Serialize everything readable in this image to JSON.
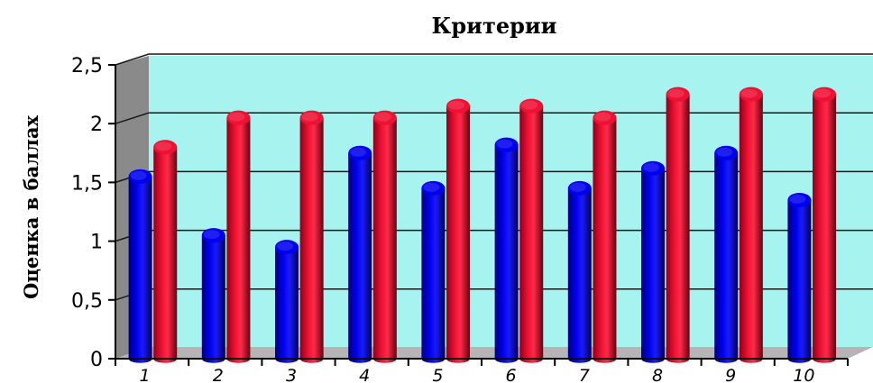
{
  "chart_data": {
    "type": "bar",
    "title": "Критерии",
    "ylabel": "Оценка в баллах",
    "xlabel": "",
    "ylim": [
      0,
      2.5
    ],
    "yticks": [
      "0",
      "0,5",
      "1",
      "1,5",
      "2",
      "2,5"
    ],
    "categories": [
      "1",
      "2",
      "3",
      "4",
      "5",
      "6",
      "7",
      "8",
      "9",
      "10"
    ],
    "grid": true,
    "legend": "none",
    "style": "3d-cylinder",
    "colors": {
      "plot_back_wall": "#a6f3f0",
      "side_wall": "#8a8a8a",
      "floor": "#b5b5b5",
      "gridline": "#1a1a1a"
    },
    "series": [
      {
        "values": [
          1.55,
          1.05,
          0.95,
          1.75,
          1.45,
          1.82,
          1.45,
          1.62,
          1.75,
          1.35
        ],
        "color": "#0000ee"
      },
      {
        "values": [
          1.8,
          2.05,
          2.05,
          2.05,
          2.15,
          2.15,
          2.05,
          2.25,
          2.25,
          2.25
        ],
        "color": "#ee1133"
      }
    ]
  }
}
